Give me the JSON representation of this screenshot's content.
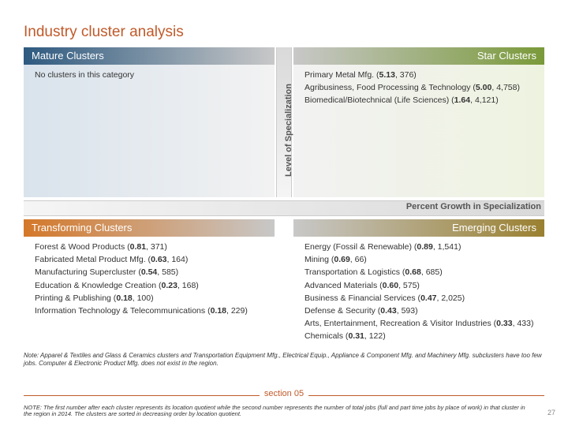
{
  "page_title": "Industry cluster analysis",
  "axes": {
    "y_label": "Level of Specialization",
    "x_label": "Percent Growth in Specialization"
  },
  "colors": {
    "accent_orange": "#c05a2a",
    "mature_start": "#2e5a80",
    "star_end": "#7a9a3a",
    "transforming_start": "#d4782a",
    "emerging_end": "#9a8030",
    "gray_mid": "#c8c8c8",
    "axis_gray": "#d9d9d9",
    "text": "#333333"
  },
  "quadrants": {
    "mature": {
      "title": "Mature Clusters",
      "items": [
        {
          "text": "No clusters in this category"
        }
      ]
    },
    "star": {
      "title": "Star Clusters",
      "items": [
        {
          "name": "Primary Metal Mfg.",
          "lq": "5.13",
          "jobs": "376"
        },
        {
          "name": "Agribusiness, Food Processing & Technology",
          "lq": "5.00",
          "jobs": "4,758"
        },
        {
          "name": "Biomedical/Biotechnical (Life Sciences)",
          "lq": "1.64",
          "jobs": "4,121"
        }
      ]
    },
    "transforming": {
      "title": "Transforming Clusters",
      "items": [
        {
          "name": "Forest & Wood Products",
          "lq": "0.81",
          "jobs": "371"
        },
        {
          "name": "Fabricated Metal Product Mfg.",
          "lq": "0.63",
          "jobs": "164"
        },
        {
          "name": "Manufacturing Supercluster",
          "lq": "0.54",
          "jobs": "585"
        },
        {
          "name": "Education & Knowledge Creation",
          "lq": "0.23",
          "jobs": "168"
        },
        {
          "name": "Printing & Publishing",
          "lq": "0.18",
          "jobs": "100"
        },
        {
          "name": "Information Technology & Telecommunications",
          "lq": "0.18",
          "jobs": "229"
        }
      ]
    },
    "emerging": {
      "title": "Emerging Clusters",
      "items": [
        {
          "name": "Energy (Fossil & Renewable)",
          "lq": "0.89",
          "jobs": "1,541"
        },
        {
          "name": "Mining",
          "lq": "0.69",
          "jobs": "66"
        },
        {
          "name": "Transportation & Logistics",
          "lq": "0.68",
          "jobs": "685"
        },
        {
          "name": "Advanced Materials",
          "lq": "0.60",
          "jobs": "575"
        },
        {
          "name": "Business & Financial Services",
          "lq": "0.47",
          "jobs": "2,025"
        },
        {
          "name": "Defense & Security",
          "lq": "0.43",
          "jobs": "593"
        },
        {
          "name": "Arts, Entertainment, Recreation & Visitor Industries",
          "lq": "0.33",
          "jobs": "433"
        },
        {
          "name": "Chemicals",
          "lq": "0.31",
          "jobs": "122"
        }
      ]
    }
  },
  "footnotes": {
    "note1": "Note: Apparel & Textiles and Glass & Ceramics clusters and Transportation Equipment Mfg., Electrical Equip., Appliance & Component Mfg. and Machinery Mfg. subclusters have too few jobs. Computer & Electronic Product Mfg. does not exist in the region.",
    "note2": "NOTE: The first number after each cluster represents its location quotient while the second number represents the number of total jobs (full and part time jobs by place of work) in that cluster in the region in 2014. The clusters are sorted in decreasing order by location quotient."
  },
  "section_label": "section 05",
  "page_number": "27"
}
